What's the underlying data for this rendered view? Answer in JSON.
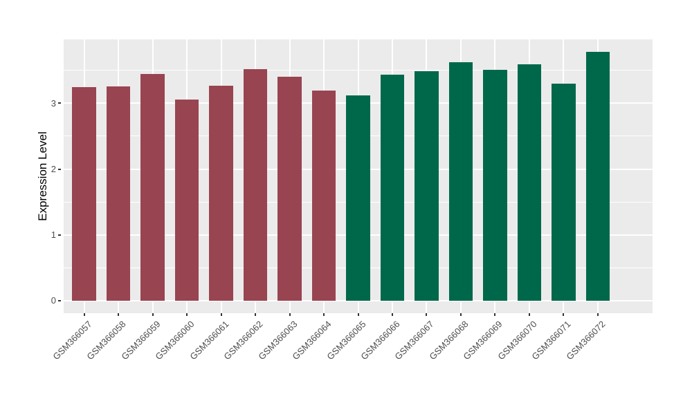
{
  "chart_data": {
    "type": "bar",
    "title": "",
    "xlabel": "",
    "ylabel": "Expression Level",
    "categories": [
      "GSM366057",
      "GSM366058",
      "GSM366059",
      "GSM366060",
      "GSM366061",
      "GSM366062",
      "GSM366063",
      "GSM366064",
      "GSM366065",
      "GSM366066",
      "GSM366067",
      "GSM366068",
      "GSM366069",
      "GSM366070",
      "GSM366071",
      "GSM366072"
    ],
    "values": [
      3.24,
      3.26,
      3.45,
      3.06,
      3.27,
      3.52,
      3.4,
      3.19,
      3.12,
      3.43,
      3.49,
      3.62,
      3.51,
      3.59,
      3.3,
      3.78
    ],
    "bar_colors": [
      "#994451",
      "#994451",
      "#994451",
      "#994451",
      "#994451",
      "#994451",
      "#994451",
      "#994451",
      "#00684A",
      "#00684A",
      "#00684A",
      "#00684A",
      "#00684A",
      "#00684A",
      "#00684A",
      "#00684A"
    ],
    "y_ticks": [
      0,
      1,
      2,
      3
    ],
    "y_tick_labels": [
      "0",
      "1",
      "2",
      "3"
    ],
    "y_minor_ticks": [
      0.5,
      1.5,
      2.5,
      3.5
    ],
    "ylim": [
      -0.19,
      3.97
    ],
    "grid": true,
    "legend": "none",
    "colors": {
      "panel_background": "#EBEBEB",
      "gridline": "#FFFFFF",
      "tick_mark": "#333333",
      "tick_label": "#4D4D4D",
      "axis_title": "#000000",
      "group_left": "#994451",
      "group_right": "#00684A"
    }
  }
}
